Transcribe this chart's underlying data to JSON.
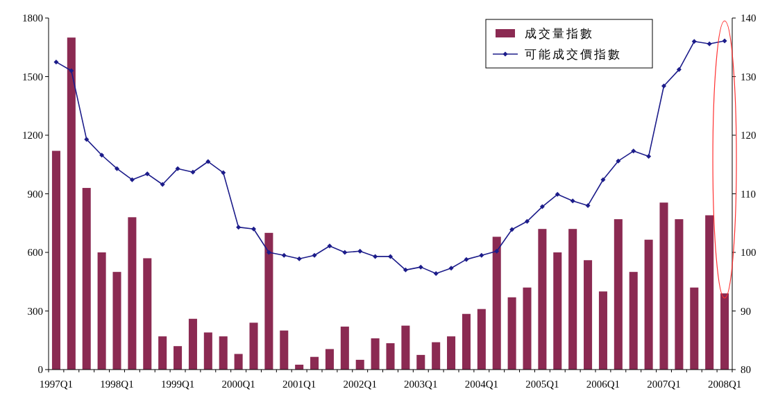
{
  "chart_data": {
    "type": "bar",
    "categories": [
      "1997Q1",
      null,
      null,
      null,
      "1998Q1",
      null,
      null,
      null,
      "1999Q1",
      null,
      null,
      null,
      "2000Q1",
      null,
      null,
      null,
      "2001Q1",
      null,
      null,
      null,
      "2002Q1",
      null,
      null,
      null,
      "2003Q1",
      null,
      null,
      null,
      "2004Q1",
      null,
      null,
      null,
      "2005Q1",
      null,
      null,
      null,
      "2006Q1",
      null,
      null,
      null,
      "2007Q1",
      null,
      null,
      null,
      "2008Q1"
    ],
    "series": [
      {
        "name": "成交量指數",
        "color": "#8b2a52",
        "values": [
          1120,
          1700,
          930,
          600,
          500,
          780,
          570,
          170,
          120,
          260,
          190,
          170,
          80,
          240,
          700,
          200,
          25,
          65,
          105,
          220,
          50,
          160,
          135,
          225,
          75,
          140,
          170,
          285,
          310,
          680,
          370,
          420,
          720,
          600,
          720,
          560,
          400,
          770,
          500,
          665,
          855,
          770,
          420,
          790,
          390
        ]
      },
      {
        "name": "可能成交價指數",
        "type": "line",
        "axis": "y2",
        "color": "#1c1c8a",
        "values": [
          132.5,
          131,
          119.3,
          116.6,
          114.3,
          112.4,
          113.4,
          111.6,
          114.3,
          113.7,
          115.5,
          113.6,
          104.3,
          104,
          100,
          99.5,
          98.9,
          99.5,
          101.1,
          100,
          100.2,
          99.3,
          99.3,
          97,
          97.5,
          96.4,
          97.3,
          98.8,
          99.5,
          100.2,
          103.9,
          105.3,
          107.8,
          109.9,
          108.8,
          108,
          112.4,
          115.6,
          117.3,
          116.4,
          128.4,
          131.2,
          136,
          135.6,
          136.1
        ]
      }
    ],
    "ylim": [
      0,
      1800
    ],
    "yticks": [
      0,
      300,
      600,
      900,
      1200,
      1500,
      1800
    ],
    "y2lim": [
      80,
      140
    ],
    "y2ticks": [
      80,
      90,
      100,
      110,
      120,
      130,
      140
    ],
    "marker": "diamond",
    "legend": "top right"
  }
}
